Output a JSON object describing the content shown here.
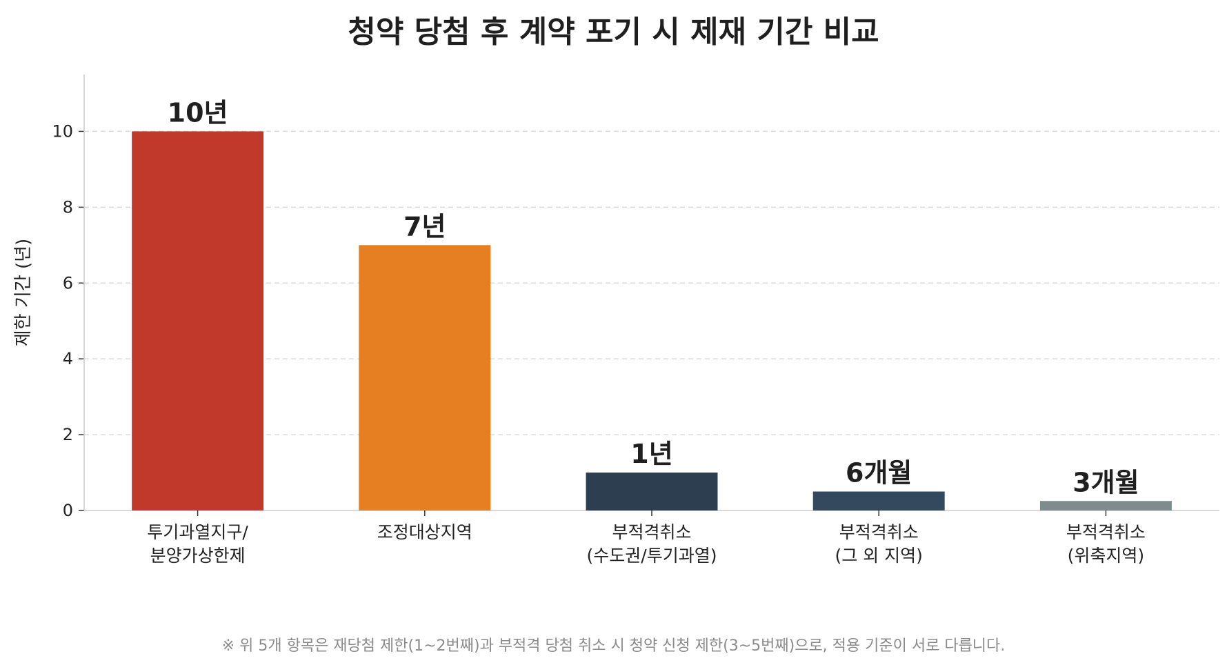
{
  "chart_data": {
    "type": "bar",
    "title": "청약 당첨 후 계약 포기 시 제재 기간 비교",
    "ylabel": "제한 기간 (년)",
    "xlabel": "",
    "ylim": [
      0,
      11.5
    ],
    "yticks": [
      0,
      2,
      4,
      6,
      8,
      10
    ],
    "grid": true,
    "categories": [
      [
        "투기과열지구/",
        "분양가상한제"
      ],
      [
        "조정대상지역"
      ],
      [
        "부적격취소",
        "(수도권/투기과열)"
      ],
      [
        "부적격취소",
        "(그 외 지역)"
      ],
      [
        "부적격취소",
        "(위축지역)"
      ]
    ],
    "values": [
      10,
      7,
      1,
      0.5,
      0.25
    ],
    "data_labels": [
      "10년",
      "7년",
      "1년",
      "6개월",
      "3개월"
    ],
    "colors": [
      "#c0392b",
      "#e67e22",
      "#2c3e50",
      "#34495e",
      "#7f8c8d"
    ]
  },
  "footnote": "※ 위 5개 항목은 재당첨 제한(1~2번째)과 부적격 당첨 취소 시 청약 신청 제한(3~5번째)으로, 적용 기준이 서로 다릅니다."
}
